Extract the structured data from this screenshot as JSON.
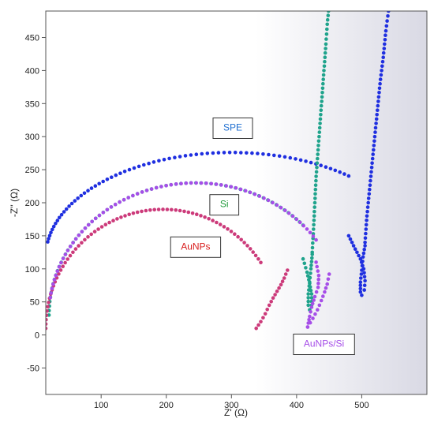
{
  "chart_data": {
    "type": "scatter",
    "title": "",
    "xlabel": "Z' (Ω)",
    "ylabel": "-Z'' (Ω)",
    "xlim": [
      15,
      600
    ],
    "ylim": [
      -90,
      490
    ],
    "x_ticks": [
      100,
      200,
      300,
      400,
      500
    ],
    "y_ticks": [
      -50,
      0,
      50,
      100,
      150,
      200,
      250,
      300,
      350,
      400,
      450
    ],
    "grid": false,
    "series": [
      {
        "name": "SPE",
        "color": "#1f2fe0",
        "arc": {
          "center": [
            300,
            118
          ],
          "rx": 285,
          "ry": 158,
          "from_x": 18,
          "to_x": 480
        },
        "hook": [
          [
            480,
            150
          ],
          [
            490,
            130
          ],
          [
            498,
            115
          ],
          [
            503,
            100
          ],
          [
            505,
            82
          ],
          [
            504,
            68
          ],
          [
            500,
            60
          ],
          [
            498,
            65
          ],
          [
            498,
            80
          ],
          [
            500,
            98
          ],
          [
            502,
            118
          ],
          [
            505,
            135
          ]
        ],
        "tail": [
          [
            505,
            140
          ],
          [
            508,
            180
          ],
          [
            512,
            220
          ],
          [
            516,
            260
          ],
          [
            520,
            300
          ],
          [
            524,
            340
          ],
          [
            528,
            380
          ],
          [
            533,
            420
          ],
          [
            537,
            460
          ],
          [
            541,
            490
          ]
        ]
      },
      {
        "name": "Si",
        "color": "#1fa38c",
        "arc": {
          "center": [
            245,
            30
          ],
          "rx": 225,
          "ry": 200,
          "from_x": 20,
          "to_x": 410
        },
        "hook": [
          [
            410,
            115
          ],
          [
            416,
            95
          ],
          [
            420,
            78
          ],
          [
            423,
            62
          ],
          [
            423,
            45
          ],
          [
            420,
            38
          ],
          [
            418,
            45
          ],
          [
            418,
            62
          ],
          [
            420,
            80
          ],
          [
            422,
            100
          ],
          [
            424,
            122
          ]
        ],
        "tail": [
          [
            424,
            125
          ],
          [
            426,
            160
          ],
          [
            428,
            200
          ],
          [
            430,
            240
          ],
          [
            433,
            280
          ],
          [
            436,
            320
          ],
          [
            439,
            360
          ],
          [
            442,
            400
          ],
          [
            445,
            440
          ],
          [
            447,
            470
          ],
          [
            449,
            490
          ]
        ]
      },
      {
        "name": "AuNPs",
        "color": "#cc3a7a",
        "arc": {
          "center": [
            195,
            10
          ],
          "rx": 180,
          "ry": 180,
          "from_x": 15,
          "to_x": 345
        },
        "tail": [
          [
            338,
            10
          ],
          [
            345,
            20
          ],
          [
            352,
            32
          ],
          [
            358,
            45
          ],
          [
            364,
            56
          ],
          [
            370,
            66
          ],
          [
            376,
            76
          ],
          [
            381,
            86
          ],
          [
            386,
            98
          ]
        ]
      },
      {
        "name": "AuNPs/Si",
        "color": "#a64ee8",
        "arc": {
          "center": [
            245,
            30
          ],
          "rx": 225,
          "ry": 200,
          "from_x": 22,
          "to_x": 430
        },
        "hook": [
          [
            430,
            110
          ],
          [
            434,
            90
          ],
          [
            433,
            72
          ],
          [
            428,
            58
          ],
          [
            423,
            42
          ],
          [
            420,
            28
          ],
          [
            418,
            18
          ],
          [
            417,
            12
          ]
        ],
        "tail": [
          [
            417,
            12
          ],
          [
            425,
            25
          ],
          [
            432,
            38
          ],
          [
            438,
            52
          ],
          [
            443,
            65
          ],
          [
            447,
            77
          ],
          [
            450,
            92
          ]
        ]
      }
    ],
    "annotations": [
      {
        "text": "SPE",
        "series": "SPE",
        "color": "#1f6fd0",
        "box": "#333333"
      },
      {
        "text": "Si",
        "series": "Si",
        "color": "#1f9a3a",
        "box": "#333333"
      },
      {
        "text": "AuNPs",
        "series": "AuNPs",
        "color": "#d81e1e",
        "box": "#333333"
      },
      {
        "text": "AuNPs/Si",
        "series": "AuNPs/Si",
        "color": "#a64ee8",
        "box": "#333333"
      }
    ]
  }
}
